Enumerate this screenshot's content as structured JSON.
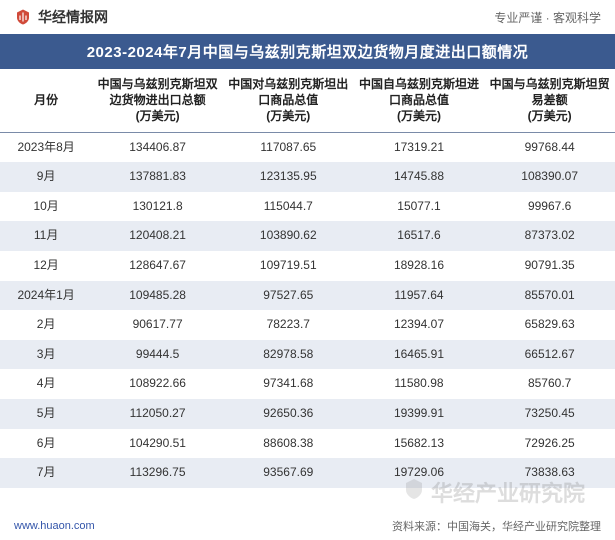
{
  "brand": {
    "icon_color": "#d04a3a",
    "name": "华经情报网",
    "tagline": "专业严谨 · 客观科学"
  },
  "title": "2023-2024年7月中国与乌兹别克斯坦双边货物月度进出口额情况",
  "table": {
    "columns": [
      "月份",
      "中国与乌兹别克斯坦双边货物进出口总额\n(万美元)",
      "中国对乌兹别克斯坦出口商品总值\n(万美元)",
      "中国自乌兹别克斯坦进口商品总值\n(万美元)",
      "中国与乌兹别克斯坦贸易差额\n(万美元)"
    ],
    "rows": [
      [
        "2023年8月",
        "134406.87",
        "117087.65",
        "17319.21",
        "99768.44"
      ],
      [
        "9月",
        "137881.83",
        "123135.95",
        "14745.88",
        "108390.07"
      ],
      [
        "10月",
        "130121.8",
        "115044.7",
        "15077.1",
        "99967.6"
      ],
      [
        "11月",
        "120408.21",
        "103890.62",
        "16517.6",
        "87373.02"
      ],
      [
        "12月",
        "128647.67",
        "109719.51",
        "18928.16",
        "90791.35"
      ],
      [
        "2024年1月",
        "109485.28",
        "97527.65",
        "11957.64",
        "85570.01"
      ],
      [
        "2月",
        "90617.77",
        "78223.7",
        "12394.07",
        "65829.63"
      ],
      [
        "3月",
        "99444.5",
        "82978.58",
        "16465.91",
        "66512.67"
      ],
      [
        "4月",
        "108922.66",
        "97341.68",
        "11580.98",
        "85760.7"
      ],
      [
        "5月",
        "112050.27",
        "92650.36",
        "19399.91",
        "73250.45"
      ],
      [
        "6月",
        "104290.51",
        "88608.38",
        "15682.13",
        "72926.25"
      ],
      [
        "7月",
        "113296.75",
        "93567.69",
        "19729.06",
        "73838.63"
      ]
    ],
    "header_bg": "#ffffff",
    "row_alt_bg": "#e8ecf3",
    "row_bg": "#ffffff",
    "border_color": "#7a8ba8",
    "title_bg": "#3b5a8f",
    "title_color": "#ffffff",
    "font_size_header": 12,
    "font_size_cell": 12,
    "font_size_title": 15
  },
  "footer": {
    "left": "www.huaon.com",
    "right": "资料来源：中国海关，华经产业研究院整理"
  },
  "watermark": {
    "text": "华经产业研究院",
    "color": "rgba(100,100,100,0.22)"
  }
}
